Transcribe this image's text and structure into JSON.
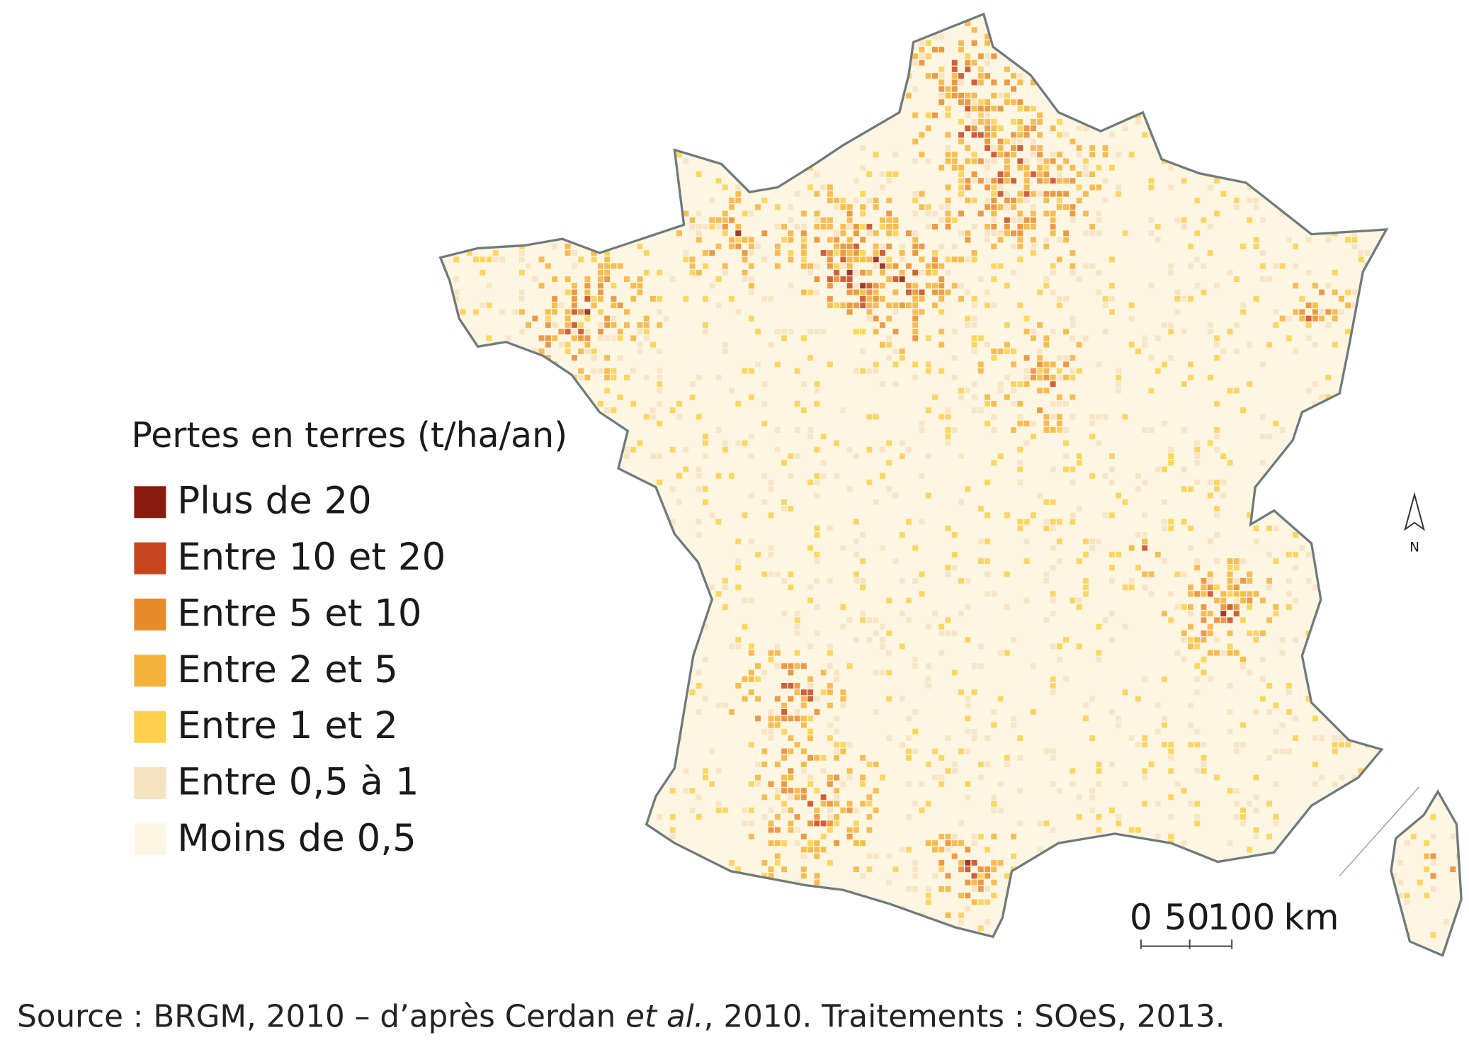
{
  "legend": {
    "title": "Pertes en terres (t/ha/an)",
    "items": [
      {
        "label": "Plus de 20",
        "color": "#8b1a0e"
      },
      {
        "label": "Entre 10 et 20",
        "color": "#c8441c"
      },
      {
        "label": "Entre 5 et 10",
        "color": "#e98a2a"
      },
      {
        "label": "Entre 2 et 5",
        "color": "#f6b13a"
      },
      {
        "label": "Entre 1 et 2",
        "color": "#fcd04a"
      },
      {
        "label": "Entre 0,5 à 1",
        "color": "#f7e2c2"
      },
      {
        "label": "Moins de 0,5",
        "color": "#fdf6e2"
      }
    ]
  },
  "scale_bar": {
    "ticks": [
      "0",
      "50",
      "100"
    ],
    "unit": "km"
  },
  "north": "N",
  "source": {
    "before": "Source : BRGM, 2010 – d’après Cerdan ",
    "italic": "et al.",
    "after": ", 2010. Traitements : SOeS, 2013."
  }
}
